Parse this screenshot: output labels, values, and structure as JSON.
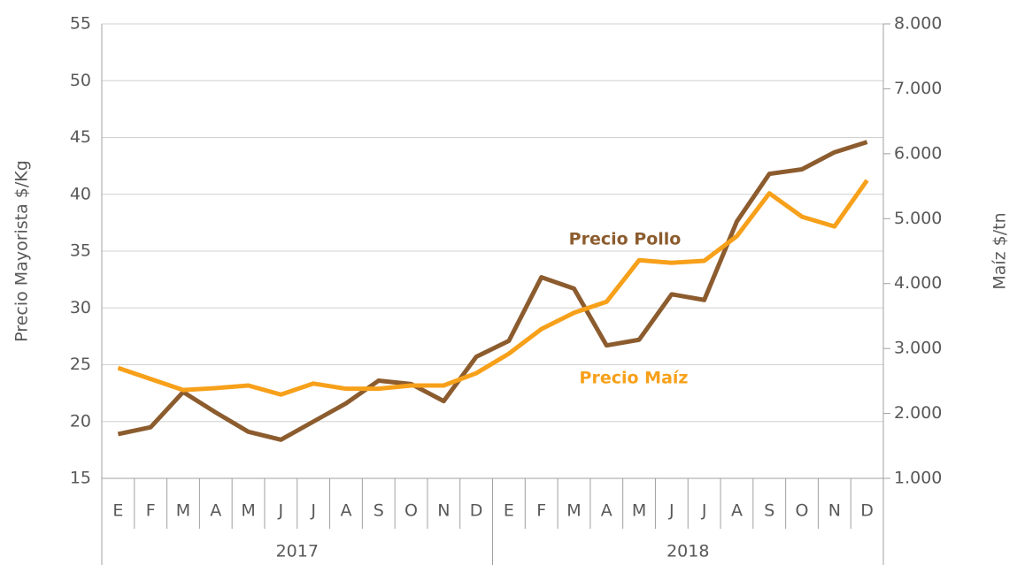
{
  "chart_data": {
    "type": "line",
    "categories": [
      "E",
      "F",
      "M",
      "A",
      "M",
      "J",
      "J",
      "A",
      "S",
      "O",
      "N",
      "D",
      "E",
      "F",
      "M",
      "A",
      "M",
      "J",
      "J",
      "A",
      "S",
      "O",
      "N",
      "D"
    ],
    "year_groups": [
      "2017",
      "2018"
    ],
    "ylabel": "Precio Mayorista $/Kg",
    "y2label": "Maíz $/tn",
    "ylim": [
      15,
      55
    ],
    "yticks": [
      15,
      20,
      25,
      30,
      35,
      40,
      45,
      50,
      55
    ],
    "y2lim": [
      1000,
      8000
    ],
    "y2ticks": [
      {
        "value": 1000,
        "label": "1.000"
      },
      {
        "value": 2000,
        "label": "2.000"
      },
      {
        "value": 3000,
        "label": "3.000"
      },
      {
        "value": 4000,
        "label": "4.000"
      },
      {
        "value": 5000,
        "label": "5.000"
      },
      {
        "value": 6000,
        "label": "6.000"
      },
      {
        "value": 7000,
        "label": "7.000"
      },
      {
        "value": 8000,
        "label": "8.000"
      }
    ],
    "grid": true,
    "series": [
      {
        "name": "Precio Pollo",
        "color": "#8c5c2e",
        "axis": "y",
        "values": [
          18.9,
          19.5,
          22.6,
          20.8,
          19.1,
          18.4,
          20.0,
          21.6,
          23.6,
          23.3,
          21.8,
          25.7,
          27.1,
          32.7,
          31.7,
          26.7,
          27.2,
          31.2,
          30.7,
          37.6,
          41.8,
          42.2,
          43.7,
          44.6
        ]
      },
      {
        "name": "Precio Maíz",
        "color": "#f7a01a",
        "axis": "y2",
        "values": [
          2700,
          2530,
          2360,
          2390,
          2430,
          2290,
          2460,
          2380,
          2380,
          2430,
          2430,
          2620,
          2920,
          3300,
          3550,
          3720,
          4360,
          4320,
          4350,
          4730,
          5390,
          5030,
          4880,
          5590
        ]
      }
    ]
  }
}
